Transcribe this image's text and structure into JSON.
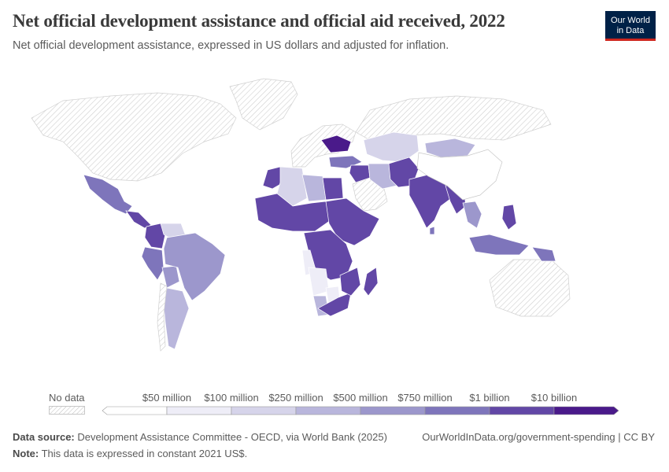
{
  "header": {
    "title": "Net official development assistance and official aid received, 2022",
    "subtitle": "Net official development assistance, expressed in US dollars and adjusted for inflation."
  },
  "logo": {
    "line1": "Our World",
    "line2": "in Data"
  },
  "legend": {
    "no_data_label": "No data",
    "thresholds": [
      "$50 million",
      "$100 million",
      "$250 million",
      "$500 million",
      "$750 million",
      "$1 billion",
      "$10 billion"
    ],
    "colors": [
      "#ffffff",
      "#eeedf7",
      "#d6d4ea",
      "#b9b6dc",
      "#9c97cc",
      "#7e75bb",
      "#6247a6",
      "#4a1a8a"
    ]
  },
  "footer": {
    "source_label": "Data source:",
    "source_text": "Development Assistance Committee - OECD, via World Bank (2025)",
    "note_label": "Note:",
    "note_text": "This data is expressed in constant 2021 US$.",
    "url": "OurWorldInData.org/government-spending | CC BY"
  }
}
